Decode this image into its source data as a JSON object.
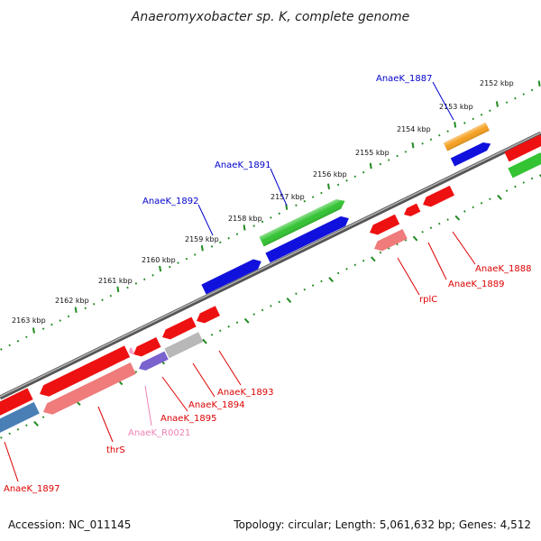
{
  "title": "Anaeromyxobacter sp. K, complete genome",
  "footer": {
    "accession": "Accession: NC_011145",
    "topology": "Topology: circular; Length: 5,061,632 bp; Genes: 4,512"
  },
  "colors": {
    "background": "#ffffff",
    "backbone": "#8a8a8a",
    "tick_dots": "#228b22",
    "forward_label": "#0000cc",
    "reverse_label": "#dd0000",
    "rna_label": "#ee82b4",
    "gene_red": "#ee1111",
    "gene_pink": "#ef7b7b",
    "gene_blue": "#1111dd",
    "gene_green": "#33c333",
    "gene_orange": "#f5a020",
    "gene_gray": "#b8b8b8",
    "gene_steel": "#4a7fb5",
    "gene_violet": "#7a63cf",
    "gene_lightpink": "#f5a6c8"
  },
  "ticks": [
    {
      "label": "2152 kbp"
    },
    {
      "label": "2153 kbp"
    },
    {
      "label": "2154 kbp"
    },
    {
      "label": "2155 kbp"
    },
    {
      "label": "2156 kbp"
    },
    {
      "label": "2157 kbp"
    },
    {
      "label": "2158 kbp"
    },
    {
      "label": "2159 kbp"
    },
    {
      "label": "2160 kbp"
    },
    {
      "label": "2161 kbp"
    },
    {
      "label": "2162 kbp"
    },
    {
      "label": "2163 kbp"
    }
  ],
  "genes": [
    {
      "text": "AnaeK_1887",
      "strand": "forward"
    },
    {
      "text": "AnaeK_1891",
      "strand": "forward"
    },
    {
      "text": "AnaeK_1892",
      "strand": "forward"
    },
    {
      "text": "AnaeK_1888",
      "strand": "reverse"
    },
    {
      "text": "AnaeK_1889",
      "strand": "reverse"
    },
    {
      "text": "rplC",
      "strand": "reverse"
    },
    {
      "text": "AnaeK_1893",
      "strand": "reverse"
    },
    {
      "text": "AnaeK_1894",
      "strand": "reverse"
    },
    {
      "text": "AnaeK_1895",
      "strand": "reverse"
    },
    {
      "text": "AnaeK_R0021",
      "strand": "rna"
    },
    {
      "text": "thrS",
      "strand": "reverse"
    },
    {
      "text": "AnaeK_1897",
      "strand": "reverse"
    }
  ]
}
